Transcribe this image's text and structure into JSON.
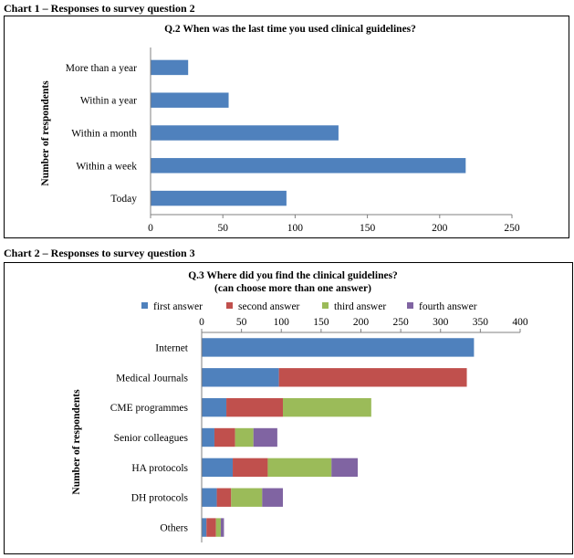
{
  "captions": {
    "chart1": "Chart 1 – Responses to survey question 2",
    "chart2": "Chart 2 – Responses to survey question 3"
  },
  "chart_data": [
    {
      "type": "bar",
      "orientation": "horizontal",
      "title": "Q.2 When was the last time you used clinical guidelines?",
      "ylabel": "Number of respondents",
      "xlabel": "",
      "categories": [
        "More than a year",
        "Within a year",
        "Within a month",
        "Within a week",
        "Today"
      ],
      "values": [
        26,
        54,
        130,
        218,
        94
      ],
      "xlim": [
        0,
        250
      ],
      "xticks": [
        0,
        50,
        100,
        150,
        200,
        250
      ],
      "color": "#4f81bd",
      "grid": false,
      "legend": "none"
    },
    {
      "type": "bar",
      "orientation": "horizontal",
      "stacked": true,
      "title": "Q.3 Where did you find the clinical guidelines?",
      "subtitle": "(can choose more than one answer)",
      "ylabel": "Number of respondents",
      "xlabel": "",
      "categories": [
        "Internet",
        "Medical Journals",
        "CME programmes",
        "Senior colleagues",
        "HA protocols",
        "DH protocols",
        "Others"
      ],
      "series": [
        {
          "name": "first answer",
          "color": "#4f81bd",
          "values": [
            342,
            97,
            31,
            16,
            39,
            19,
            6
          ]
        },
        {
          "name": "second answer",
          "color": "#c0504d",
          "values": [
            0,
            236,
            71,
            26,
            44,
            18,
            12
          ]
        },
        {
          "name": "third answer",
          "color": "#9bbb59",
          "values": [
            0,
            0,
            111,
            23,
            80,
            39,
            6
          ]
        },
        {
          "name": "fourth answer",
          "color": "#8064a2",
          "values": [
            0,
            0,
            0,
            30,
            33,
            26,
            4
          ]
        }
      ],
      "xlim": [
        0,
        400
      ],
      "xticks": [
        0,
        50,
        100,
        150,
        200,
        250,
        300,
        350,
        400
      ],
      "grid": false,
      "legend": "top"
    }
  ]
}
